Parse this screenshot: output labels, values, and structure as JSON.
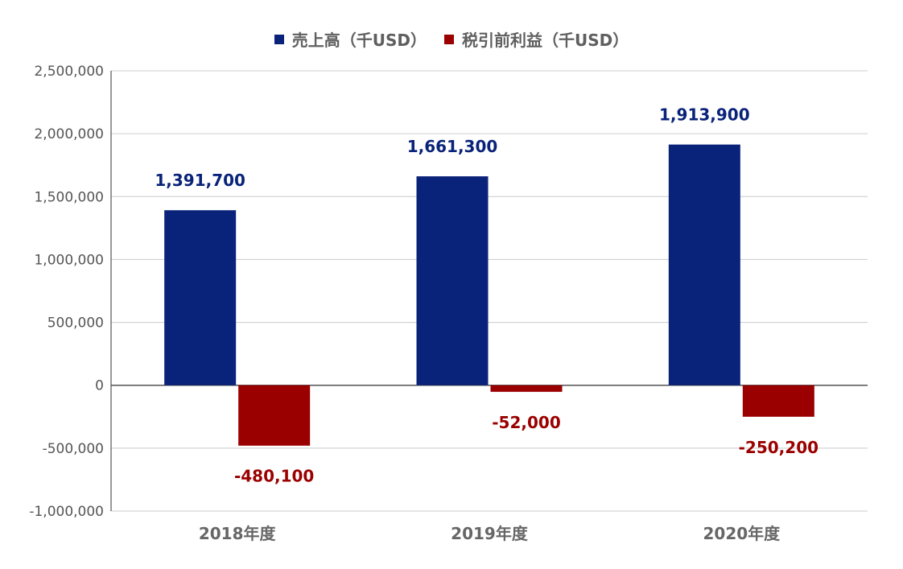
{
  "chart_data": {
    "type": "bar",
    "categories": [
      "2018年度",
      "2019年度",
      "2020年度"
    ],
    "series": [
      {
        "name": "売上高（千USD）",
        "color": "#0a237a",
        "values": [
          1391700,
          1661300,
          1913900
        ],
        "labels": [
          "1,391,700",
          "1,661,300",
          "1,913,900"
        ]
      },
      {
        "name": "税引前利益（千USD）",
        "color": "#9b0000",
        "values": [
          -480100,
          -52000,
          -250200
        ],
        "labels": [
          "-480,100",
          "-52,000",
          "-250,200"
        ]
      }
    ],
    "ylim": [
      -1000000,
      2500000
    ],
    "yticks": [
      2500000,
      2000000,
      1500000,
      1000000,
      500000,
      0,
      -500000,
      -1000000
    ],
    "ytick_labels": [
      "2,500,000",
      "2,000,000",
      "1,500,000",
      "1,000,000",
      "500,000",
      "0",
      "-500,000",
      "-1,000,000"
    ],
    "grid": true,
    "legend_position": "top-center"
  }
}
